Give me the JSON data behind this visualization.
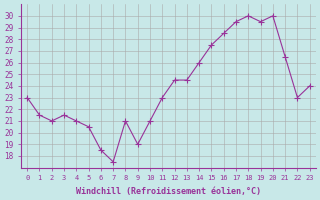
{
  "x": [
    0,
    1,
    2,
    3,
    4,
    5,
    6,
    7,
    8,
    9,
    10,
    11,
    12,
    13,
    14,
    15,
    16,
    17,
    18,
    19,
    20,
    21,
    22,
    23
  ],
  "y": [
    23,
    21.5,
    21,
    21.5,
    21,
    20.5,
    18.5,
    17.5,
    21,
    19,
    21,
    23,
    24.5,
    24.5,
    26,
    27.5,
    28.5,
    29.5,
    30,
    29.5,
    30,
    26.5,
    23,
    24
  ],
  "line_color": "#993399",
  "marker": "+",
  "bg_color": "#c8e8e8",
  "grid_color": "#aaaaaa",
  "axis_label_color": "#993399",
  "tick_label_color": "#993399",
  "xlabel": "Windchill (Refroidissement éolien,°C)",
  "ylim": [
    17,
    31
  ],
  "yticks": [
    18,
    19,
    20,
    21,
    22,
    23,
    24,
    25,
    26,
    27,
    28,
    29,
    30
  ],
  "xticks": [
    0,
    1,
    2,
    3,
    4,
    5,
    6,
    7,
    8,
    9,
    10,
    11,
    12,
    13,
    14,
    15,
    16,
    17,
    18,
    19,
    20,
    21,
    22,
    23
  ],
  "xlim": [
    -0.5,
    23.5
  ]
}
